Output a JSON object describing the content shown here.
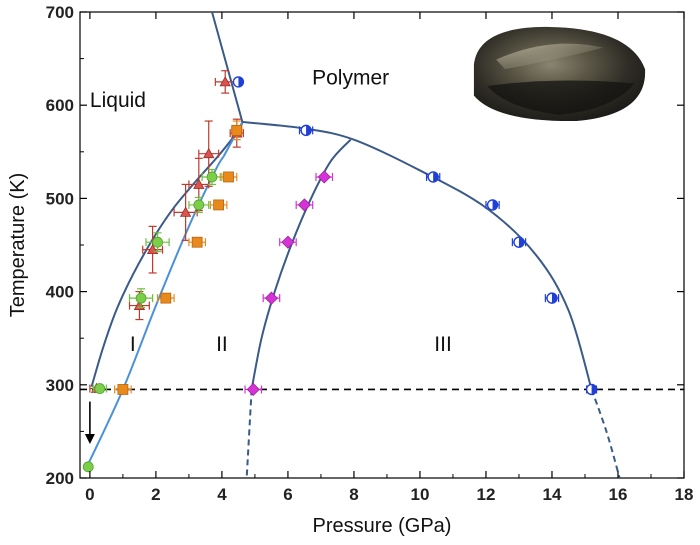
{
  "chart_data": {
    "type": "scatter",
    "xlabel": "Pressure (GPa)",
    "ylabel": "Temperature (K)",
    "xlim": [
      -0.3,
      18
    ],
    "ylim": [
      200,
      700
    ],
    "xticks": [
      0,
      2,
      4,
      6,
      8,
      10,
      12,
      14,
      16,
      18
    ],
    "yticks": [
      200,
      300,
      400,
      500,
      600,
      700
    ],
    "grid": false,
    "annotations": [
      {
        "text": "Liquid",
        "x": 0.85,
        "y": 598
      },
      {
        "text": "Polymer",
        "x": 7.9,
        "y": 622
      },
      {
        "text": "I",
        "x": 1.3,
        "y": 336
      },
      {
        "text": "II",
        "x": 4.0,
        "y": 336
      },
      {
        "text": "III",
        "x": 10.7,
        "y": 336
      }
    ],
    "reference_line": {
      "y": 295,
      "style": "dashed",
      "color": "#000000"
    },
    "boundaries": [
      {
        "color": "#3a5a8a",
        "style": "solid",
        "points": [
          [
            0.05,
            298
          ],
          [
            0.4,
            340
          ],
          [
            0.8,
            380
          ],
          [
            1.3,
            418
          ],
          [
            1.9,
            456
          ],
          [
            2.5,
            488
          ],
          [
            3.2,
            518
          ],
          [
            3.9,
            546
          ],
          [
            4.5,
            573
          ],
          [
            4.62,
            582
          ]
        ]
      },
      {
        "color": "#4a90d9",
        "style": "solid",
        "points": [
          [
            -0.05,
            215
          ],
          [
            1.0,
            295
          ],
          [
            2.0,
            385
          ],
          [
            3.0,
            470
          ],
          [
            3.8,
            530
          ],
          [
            4.05,
            545
          ]
        ]
      },
      {
        "color": "#4a90d9",
        "style": "solid",
        "points": [
          [
            4.05,
            545
          ],
          [
            4.62,
            582
          ]
        ]
      },
      {
        "color": "#3a5a8a",
        "style": "solid",
        "points": [
          [
            3.7,
            700
          ],
          [
            4.62,
            582
          ]
        ]
      },
      {
        "color": "#3a5a8a",
        "style": "solid",
        "points": [
          [
            4.62,
            582
          ],
          [
            6.5,
            575
          ],
          [
            8.0,
            563
          ],
          [
            10.0,
            530
          ],
          [
            12.0,
            490
          ],
          [
            13.5,
            440
          ],
          [
            14.5,
            380
          ],
          [
            15.2,
            295
          ]
        ]
      },
      {
        "color": "#3a5a8a",
        "style": "dashed",
        "points": [
          [
            15.2,
            295
          ],
          [
            15.65,
            250
          ],
          [
            16.05,
            200
          ]
        ]
      },
      {
        "color": "#3a5a8a",
        "style": "solid",
        "points": [
          [
            4.9,
            295
          ],
          [
            5.2,
            350
          ],
          [
            5.6,
            400
          ],
          [
            6.1,
            450
          ],
          [
            6.7,
            500
          ],
          [
            7.3,
            540
          ],
          [
            7.9,
            563
          ]
        ]
      },
      {
        "color": "#3a5a8a",
        "style": "dashed",
        "points": [
          [
            4.9,
            295
          ],
          [
            4.75,
            200
          ]
        ]
      }
    ],
    "series": [
      {
        "marker": "triangle",
        "color": "#d9534f",
        "error": "#c0392b",
        "points": [
          [
            0.2,
            296,
            0.2,
            0
          ],
          [
            1.5,
            385,
            0.3,
            15
          ],
          [
            1.9,
            445,
            0.3,
            25
          ],
          [
            2.9,
            485,
            0.35,
            30
          ],
          [
            3.3,
            515,
            0.3,
            28
          ],
          [
            3.6,
            548,
            0.3,
            35
          ],
          [
            4.1,
            625,
            0.3,
            12
          ],
          [
            4.45,
            570,
            0.2,
            15
          ]
        ]
      },
      {
        "marker": "circle",
        "color": "#7ccd4a",
        "error": "#6dbf3c",
        "points": [
          [
            0.3,
            296,
            0.2,
            0
          ],
          [
            1.55,
            393,
            0.35,
            10
          ],
          [
            2.05,
            453,
            0.35,
            10
          ],
          [
            3.3,
            493,
            0.3,
            8
          ],
          [
            3.7,
            523,
            0.3,
            8
          ],
          [
            -0.05,
            212,
            0,
            0
          ]
        ]
      },
      {
        "marker": "square",
        "color": "#e8891c",
        "error": "#e8891c",
        "points": [
          [
            1.0,
            295,
            0.25,
            0
          ],
          [
            2.3,
            393,
            0.25,
            0
          ],
          [
            3.25,
            453,
            0.25,
            0
          ],
          [
            3.9,
            493,
            0.25,
            0
          ],
          [
            4.2,
            523,
            0.25,
            0
          ],
          [
            4.45,
            573,
            0.15,
            10
          ]
        ]
      },
      {
        "marker": "diamond",
        "color": "#d633d6",
        "error": "#d633d6",
        "points": [
          [
            4.95,
            295,
            0.25,
            0
          ],
          [
            5.5,
            393,
            0.25,
            0
          ],
          [
            6.0,
            453,
            0.25,
            0
          ],
          [
            6.5,
            493,
            0.25,
            0
          ],
          [
            7.1,
            523,
            0.25,
            0
          ]
        ]
      },
      {
        "marker": "halfcircle",
        "color": "#1f3fd6",
        "error": "#1f3fd6",
        "points": [
          [
            4.5,
            625,
            0.1,
            0
          ],
          [
            6.55,
            573,
            0.2,
            0
          ],
          [
            10.4,
            523,
            0.2,
            0
          ],
          [
            12.2,
            493,
            0.2,
            0
          ],
          [
            13.0,
            453,
            0.2,
            0
          ],
          [
            14.0,
            393,
            0.2,
            0
          ],
          [
            15.2,
            295,
            0.15,
            0
          ]
        ]
      }
    ],
    "arrow": {
      "x": 0.0,
      "y_from": 282,
      "y_to": 245,
      "color": "#000000"
    },
    "inset_image": {
      "description_icon": "sample-photo",
      "x_range": [
        11.5,
        16.9
      ],
      "y_range": [
        582,
        685
      ]
    }
  }
}
